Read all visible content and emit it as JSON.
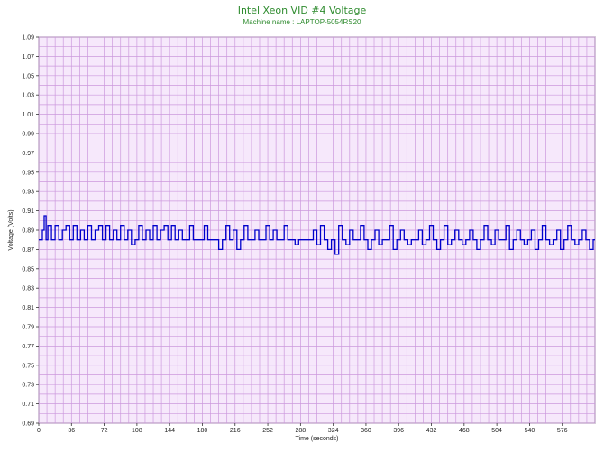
{
  "chart_data": {
    "type": "line",
    "title": "Intel Xeon VID #4 Voltage",
    "subtitle": "Machine name : LAPTOP-5054RS20",
    "xlabel": "Time (seconds)",
    "ylabel": "Voltage (Volts)",
    "xlim": [
      0,
      612
    ],
    "ylim": [
      0.69,
      1.09
    ],
    "x_ticks": [
      0,
      36,
      72,
      108,
      144,
      180,
      216,
      252,
      288,
      324,
      360,
      396,
      432,
      468,
      504,
      540,
      576
    ],
    "y_ticks": [
      0.69,
      0.71,
      0.73,
      0.75,
      0.77,
      0.79,
      0.81,
      0.83,
      0.85,
      0.87,
      0.89,
      0.91,
      0.93,
      0.95,
      0.97,
      0.99,
      1.01,
      1.03,
      1.05,
      1.07,
      1.09
    ],
    "grid": true,
    "colors": {
      "background": "#f6e8fb",
      "grid": "#cc99dd",
      "line": "#0000cc"
    },
    "series": [
      {
        "x": [
          0,
          4,
          6,
          8,
          10,
          14,
          18,
          22,
          26,
          30,
          34,
          38,
          42,
          46,
          50,
          54,
          58,
          62,
          66,
          70,
          74,
          78,
          82,
          86,
          90,
          94,
          98,
          102,
          106,
          110,
          114,
          118,
          122,
          126,
          130,
          134,
          138,
          142,
          146,
          150,
          154,
          158,
          162,
          166,
          170,
          174,
          178,
          182,
          186,
          190,
          194,
          198,
          202,
          206,
          210,
          214,
          218,
          222,
          226,
          230,
          234,
          238,
          242,
          246,
          250,
          254,
          258,
          262,
          266,
          270,
          274,
          278,
          282,
          286,
          290,
          294,
          298,
          302,
          306,
          310,
          314,
          318,
          322,
          326,
          330,
          334,
          338,
          342,
          346,
          350,
          354,
          358,
          362,
          366,
          370,
          374,
          378,
          382,
          386,
          390,
          394,
          398,
          402,
          406,
          410,
          414,
          418,
          422,
          426,
          430,
          434,
          438,
          442,
          446,
          450,
          454,
          458,
          462,
          466,
          470,
          474,
          478,
          482,
          486,
          490,
          494,
          498,
          502,
          506,
          510,
          514,
          518,
          522,
          526,
          530,
          534,
          538,
          542,
          546,
          550,
          554,
          558,
          562,
          566,
          570,
          574,
          578,
          582,
          586,
          590,
          594,
          598,
          602,
          606,
          610
        ],
        "values": [
          0.88,
          0.89,
          0.905,
          0.88,
          0.895,
          0.88,
          0.895,
          0.88,
          0.89,
          0.895,
          0.88,
          0.895,
          0.88,
          0.89,
          0.88,
          0.895,
          0.88,
          0.89,
          0.895,
          0.88,
          0.895,
          0.88,
          0.89,
          0.88,
          0.895,
          0.88,
          0.89,
          0.875,
          0.88,
          0.895,
          0.88,
          0.89,
          0.88,
          0.895,
          0.88,
          0.89,
          0.895,
          0.88,
          0.895,
          0.88,
          0.89,
          0.88,
          0.88,
          0.895,
          0.88,
          0.88,
          0.88,
          0.895,
          0.88,
          0.88,
          0.88,
          0.87,
          0.88,
          0.895,
          0.88,
          0.89,
          0.87,
          0.88,
          0.895,
          0.88,
          0.88,
          0.89,
          0.88,
          0.88,
          0.895,
          0.88,
          0.89,
          0.88,
          0.88,
          0.895,
          0.88,
          0.88,
          0.875,
          0.88,
          0.88,
          0.88,
          0.88,
          0.89,
          0.875,
          0.895,
          0.88,
          0.87,
          0.88,
          0.865,
          0.895,
          0.88,
          0.875,
          0.89,
          0.88,
          0.88,
          0.895,
          0.88,
          0.87,
          0.88,
          0.89,
          0.875,
          0.88,
          0.88,
          0.895,
          0.87,
          0.88,
          0.89,
          0.88,
          0.875,
          0.88,
          0.88,
          0.89,
          0.875,
          0.88,
          0.895,
          0.88,
          0.87,
          0.88,
          0.895,
          0.875,
          0.88,
          0.89,
          0.88,
          0.875,
          0.88,
          0.89,
          0.88,
          0.87,
          0.88,
          0.895,
          0.88,
          0.875,
          0.89,
          0.88,
          0.88,
          0.895,
          0.87,
          0.88,
          0.89,
          0.88,
          0.875,
          0.88,
          0.89,
          0.87,
          0.88,
          0.895,
          0.88,
          0.875,
          0.88,
          0.89,
          0.87,
          0.88,
          0.895,
          0.88,
          0.875,
          0.88,
          0.89,
          0.88,
          0.87,
          0.88
        ]
      }
    ]
  }
}
